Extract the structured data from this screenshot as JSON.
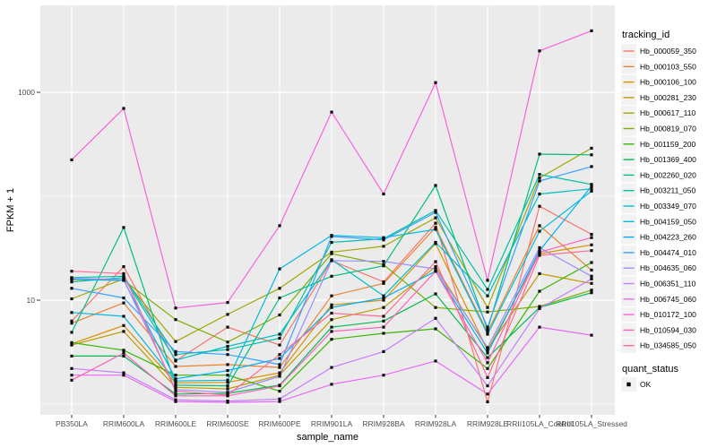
{
  "figure": {
    "background": "#FFFFFF",
    "panel_background": "#EBEBEB",
    "grid_color": "#FFFFFF",
    "tick_mark_color": "#333333",
    "tick_label_color": "#4D4D4D",
    "axis_title_color": "#000000",
    "point_color": "#0A0A0A",
    "legend_key_fill": "#F2F2F2",
    "line_width": 1.2
  },
  "chart_data": {
    "type": "line",
    "xlabel": "sample_name",
    "ylabel": "FPKM + 1",
    "y_scale": "log10",
    "y_tick_labels": [
      "10",
      "1000"
    ],
    "y_tick_values": [
      10,
      1000
    ],
    "y_minor_gridline_values": [
      1,
      100
    ],
    "ylim": [
      0.79,
      6800
    ],
    "legend_title": "tracking_id",
    "legend_position": "right",
    "quant_legend": {
      "title": "quant_status",
      "items": [
        "OK"
      ]
    },
    "categories": [
      "PB350LA",
      "RRIM600LA",
      "RRIM600LE",
      "RRIM600SE",
      "RRIM600PE",
      "RRIM901LA",
      "RRIM928BA",
      "RRIM928LA",
      "RRIM928LE",
      "RRII105LA_Control",
      "RRII105LA_Stressed"
    ],
    "series": [
      {
        "name": "Hb_000059_350",
        "color": "#F8766D",
        "values": [
          6.3,
          21,
          2.6,
          5.5,
          3.7,
          24,
          15,
          55,
          1.05,
          80,
          43
        ]
      },
      {
        "name": "Hb_000103_550",
        "color": "#EA8331",
        "values": [
          6.0,
          9.4,
          2.3,
          2.4,
          2.25,
          11,
          14.5,
          50,
          4.9,
          52,
          19.5
        ]
      },
      {
        "name": "Hb_000106_100",
        "color": "#D89000",
        "values": [
          3.8,
          5.7,
          1.6,
          1.62,
          2.0,
          9.0,
          10,
          35,
          3.3,
          28,
          34
        ]
      },
      {
        "name": "Hb_000281_230",
        "color": "#C09B00",
        "values": [
          3.7,
          5.0,
          1.45,
          1.4,
          1.9,
          6.5,
          8.5,
          21,
          3.4,
          18,
          14.5
        ]
      },
      {
        "name": "Hb_000617_110",
        "color": "#A3A500",
        "values": [
          10.3,
          16,
          4.0,
          7.3,
          13,
          29,
          33,
          62,
          8.5,
          150,
          290
        ]
      },
      {
        "name": "Hb_000819_070",
        "color": "#7CAE00",
        "values": [
          15.8,
          15.5,
          6.5,
          3.95,
          7.2,
          28,
          22,
          8.5,
          7.7,
          8.7,
          12.5
        ]
      },
      {
        "name": "Hb_001159_200",
        "color": "#39B600",
        "values": [
          3.9,
          3.3,
          1.9,
          1.9,
          1.33,
          4.2,
          4.8,
          5.3,
          2.2,
          12.2,
          23
        ]
      },
      {
        "name": "Hb_001369_400",
        "color": "#00BB4E",
        "values": [
          2.9,
          2.9,
          1.25,
          1.27,
          1.52,
          5.5,
          6.3,
          11.5,
          2.8,
          8.5,
          11.8
        ]
      },
      {
        "name": "Hb_002260_020",
        "color": "#00BF7D",
        "values": [
          4.9,
          50,
          1.52,
          1.5,
          10.5,
          17,
          21.4,
          127,
          5.2,
          254,
          250
        ]
      },
      {
        "name": "Hb_003211_050",
        "color": "#00C1A3",
        "values": [
          16.5,
          17,
          3.0,
          3.35,
          4.3,
          36,
          39,
          73,
          12.7,
          162,
          130
        ]
      },
      {
        "name": "Hb_003349_070",
        "color": "#00BFC4",
        "values": [
          15,
          16.5,
          2.65,
          3.6,
          4.7,
          24.5,
          11,
          36,
          11,
          105,
          118
        ]
      },
      {
        "name": "Hb_004159_050",
        "color": "#00BAE0",
        "values": [
          7.6,
          7.0,
          1.67,
          1.7,
          20,
          42,
          40,
          48,
          4.7,
          46,
          112
        ]
      },
      {
        "name": "Hb_004223_260",
        "color": "#00B0F6",
        "values": [
          16,
          15.5,
          1.75,
          2.1,
          2.75,
          8.5,
          10.5,
          19,
          3.1,
          30,
          125
        ]
      },
      {
        "name": "Hb_004474_010",
        "color": "#35A2FF",
        "values": [
          13,
          10.5,
          3.2,
          3.0,
          2.4,
          41,
          38,
          70,
          5.5,
          140,
          193
        ]
      },
      {
        "name": "Hb_004635_060",
        "color": "#9590FF",
        "values": [
          16.2,
          15.8,
          1.38,
          1.3,
          1.85,
          24,
          23.6,
          20,
          3.5,
          32,
          17
        ]
      },
      {
        "name": "Hb_006351_110",
        "color": "#C77CFF",
        "values": [
          2.2,
          2.0,
          1.1,
          1.07,
          1.12,
          2.25,
          3.2,
          6.7,
          1.5,
          8.3,
          16
        ]
      },
      {
        "name": "Hb_006745_060",
        "color": "#E76BF3",
        "values": [
          1.9,
          1.9,
          1.06,
          1.04,
          1.06,
          1.55,
          1.9,
          2.6,
          1.25,
          5.5,
          4.6
        ]
      },
      {
        "name": "Hb_010172_100",
        "color": "#FA62DB",
        "values": [
          224,
          700,
          8.4,
          9.5,
          52,
          645,
          105,
          1240,
          15.5,
          2500,
          3900
        ]
      },
      {
        "name": "Hb_010594_030",
        "color": "#FF62BC",
        "values": [
          1.7,
          3.1,
          1.2,
          1.2,
          1.5,
          5.0,
          5.5,
          19,
          2.5,
          29,
          40
        ]
      },
      {
        "name": "Hb_034585_050",
        "color": "#FF6A98",
        "values": [
          19,
          18,
          1.33,
          1.22,
          3.0,
          7.5,
          7.0,
          23.5,
          1.8,
          27,
          30
        ]
      }
    ]
  }
}
